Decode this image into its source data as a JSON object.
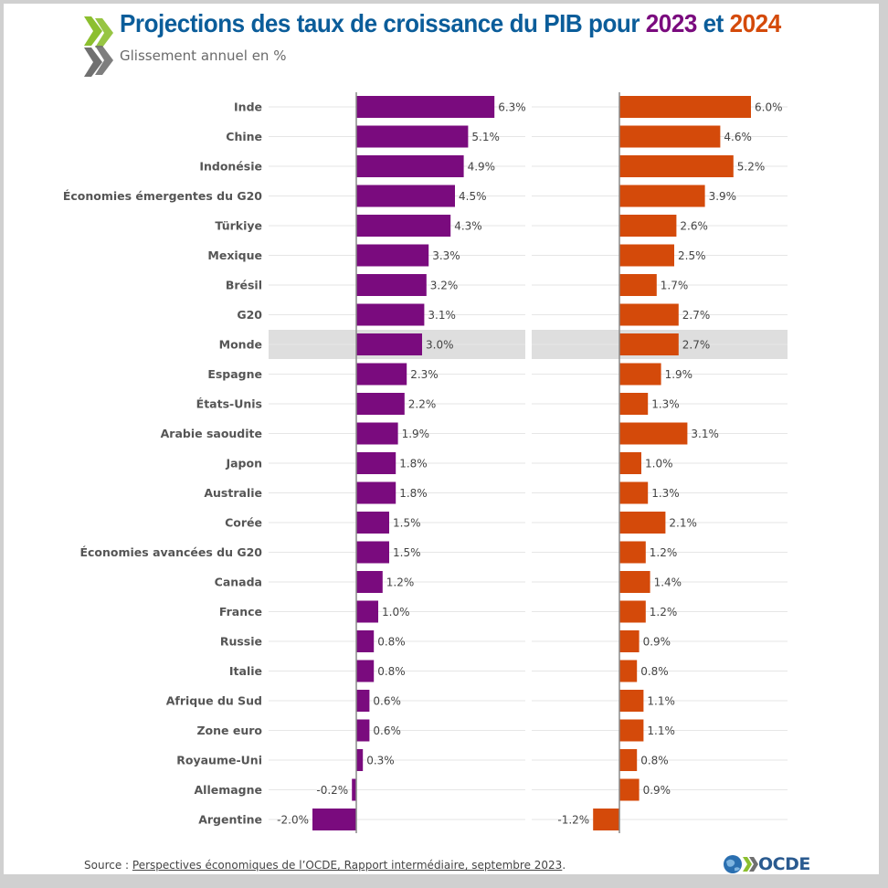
{
  "header": {
    "title_main": "Projections des taux de croissance du PIB pour",
    "title_year1": "2023",
    "title_and": "et",
    "title_year2": "2024",
    "subtitle": "Glissement annuel en %"
  },
  "footer": {
    "source_prefix": "Source : ",
    "source_link": "Perspectives économiques de l’OCDE, Rapport intermédiaire, septembre 2023",
    "source_suffix": "."
  },
  "brand": {
    "logo_text": "OCDE"
  },
  "colors": {
    "series_2023": "#7a0b7e",
    "series_2024": "#d44a0a",
    "title": "#0b5d9a",
    "highlight_row": "#dedede"
  },
  "chart_data": {
    "type": "bar",
    "orientation": "horizontal",
    "title": "Projections des taux de croissance du PIB pour 2023 et 2024",
    "subtitle": "Glissement annuel en %",
    "highlighted_category": "Monde",
    "value_suffix": "%",
    "categories": [
      "Inde",
      "Chine",
      "Indonésie",
      "Économies émergentes du G20",
      "Türkiye",
      "Mexique",
      "Brésil",
      "G20",
      "Monde",
      "Espagne",
      "États-Unis",
      "Arabie saoudite",
      "Japon",
      "Australie",
      "Corée",
      "Économies avancées du G20",
      "Canada",
      "France",
      "Russie",
      "Italie",
      "Afrique du Sud",
      "Zone euro",
      "Royaume-Uni",
      "Allemagne",
      "Argentine"
    ],
    "series": [
      {
        "name": "2023",
        "values": [
          6.3,
          5.1,
          4.9,
          4.5,
          4.3,
          3.3,
          3.2,
          3.1,
          3.0,
          2.3,
          2.2,
          1.9,
          1.8,
          1.8,
          1.5,
          1.5,
          1.2,
          1.0,
          0.8,
          0.8,
          0.6,
          0.6,
          0.3,
          -0.2,
          -2.0
        ]
      },
      {
        "name": "2024",
        "values": [
          6.0,
          4.6,
          5.2,
          3.9,
          2.6,
          2.5,
          1.7,
          2.7,
          2.7,
          1.9,
          1.3,
          3.1,
          1.0,
          1.3,
          2.1,
          1.2,
          1.4,
          1.2,
          0.9,
          0.8,
          1.1,
          1.1,
          0.8,
          0.9,
          -1.2
        ]
      }
    ],
    "legend": "in-title"
  }
}
